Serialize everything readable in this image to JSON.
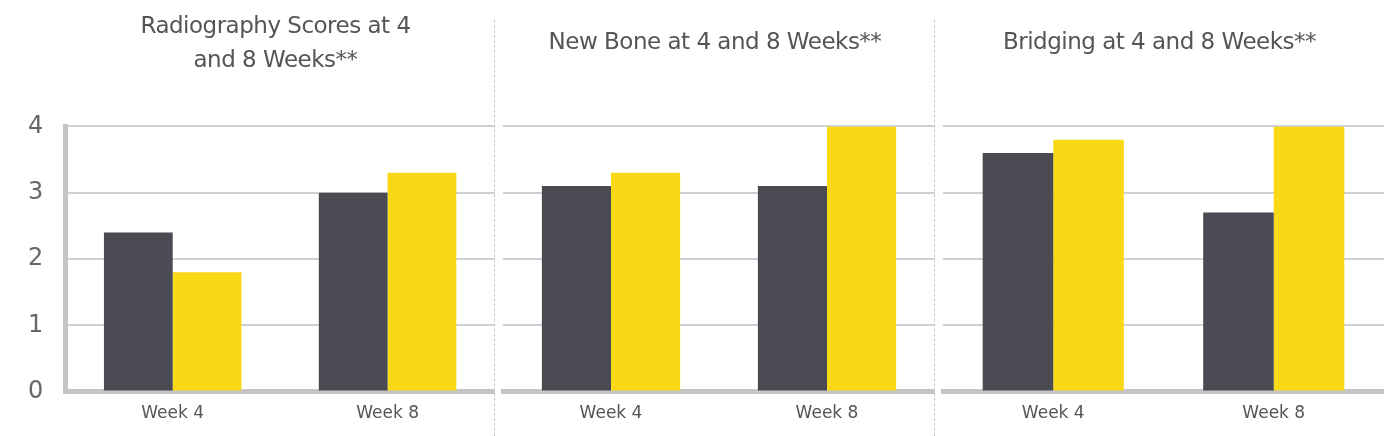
{
  "chart_data": [
    {
      "type": "bar",
      "title": "Radiography Scores at 4 and 8 Weeks**",
      "categories": [
        "Week 4",
        "Week 8"
      ],
      "series": [
        {
          "color": "#4a4a53",
          "values": [
            2.4,
            3.0
          ]
        },
        {
          "color": "#f9d915",
          "values": [
            1.8,
            3.3
          ]
        }
      ],
      "ylim": [
        0,
        4
      ],
      "yticks": [
        0,
        1,
        2,
        3,
        4
      ],
      "grid": "y"
    },
    {
      "type": "bar",
      "title": "New Bone at 4 and 8 Weeks**",
      "categories": [
        "Week 4",
        "Week 8"
      ],
      "series": [
        {
          "color": "#4a4a53",
          "values": [
            3.1,
            3.1
          ]
        },
        {
          "color": "#f9d915",
          "values": [
            3.3,
            4.0
          ]
        }
      ],
      "ylim": [
        0,
        4
      ],
      "yticks": [
        0,
        1,
        2,
        3,
        4
      ],
      "grid": "y",
      "tick_labels": "x"
    },
    {
      "type": "bar",
      "title": "Bridging at 4 and 8 Weeks**",
      "categories": [
        "Week 4",
        "Week 8"
      ],
      "series": [
        {
          "color": "#4a4a53",
          "values": [
            3.6,
            2.7
          ]
        },
        {
          "color": "#f9d915",
          "values": [
            3.8,
            4.0
          ]
        }
      ],
      "ylim": [
        0,
        4
      ],
      "yticks": [
        0,
        1,
        2,
        3,
        4
      ],
      "grid": "y",
      "tick_labels": "x"
    }
  ]
}
